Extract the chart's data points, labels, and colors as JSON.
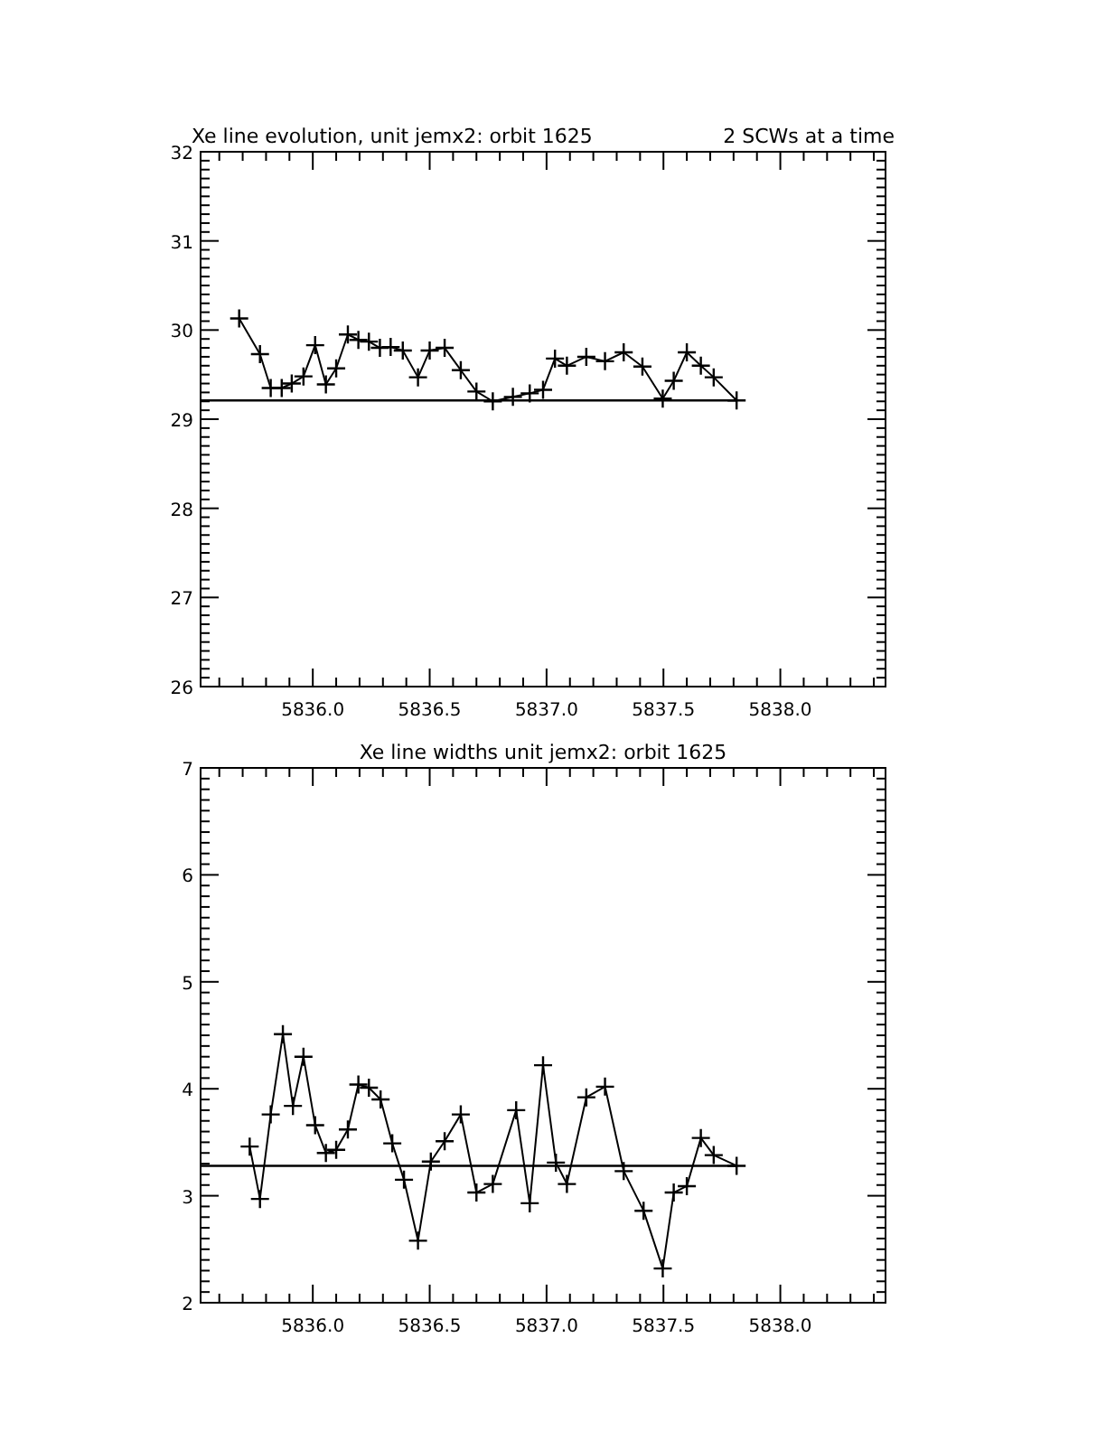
{
  "chart_data": [
    {
      "type": "line",
      "title": "Xe line evolution, unit jemx2: orbit 1625",
      "subtitle": "2 SCWs at a time",
      "marker": "cross",
      "line_style": "solid",
      "grid": false,
      "x": [
        5835.685,
        5835.774,
        5835.82,
        5835.867,
        5835.91,
        5835.96,
        5836.01,
        5836.056,
        5836.1,
        5836.15,
        5836.195,
        5836.24,
        5836.287,
        5836.333,
        5836.385,
        5836.45,
        5836.5,
        5836.564,
        5836.633,
        5836.7,
        5836.77,
        5836.856,
        5836.928,
        5836.985,
        5837.036,
        5837.087,
        5837.17,
        5837.25,
        5837.33,
        5837.41,
        5837.497,
        5837.544,
        5837.6,
        5837.66,
        5837.715,
        5837.813
      ],
      "series": [
        {
          "color": "#000000",
          "values": [
            30.13,
            29.73,
            29.35,
            29.35,
            29.4,
            29.48,
            29.83,
            29.39,
            29.57,
            29.95,
            29.89,
            29.87,
            29.8,
            29.81,
            29.77,
            29.47,
            29.77,
            29.8,
            29.55,
            29.31,
            29.2,
            29.25,
            29.29,
            29.33,
            29.68,
            29.6,
            29.7,
            29.65,
            29.75,
            29.59,
            29.23,
            29.43,
            29.75,
            29.6,
            29.47,
            29.21
          ]
        }
      ],
      "ref_lines": [
        {
          "axis": "y",
          "value": 29.21,
          "color": "#000000"
        }
      ],
      "xlim": [
        5835.52,
        5838.45
      ],
      "xticks": [
        {
          "value": 5835.6,
          "label": null
        },
        {
          "value": 5835.7,
          "label": null
        },
        {
          "value": 5835.8,
          "label": null
        },
        {
          "value": 5835.9,
          "label": null
        },
        {
          "value": 5836.0,
          "label": "5836.0"
        },
        {
          "value": 5836.1,
          "label": null
        },
        {
          "value": 5836.2,
          "label": null
        },
        {
          "value": 5836.3,
          "label": null
        },
        {
          "value": 5836.4,
          "label": null
        },
        {
          "value": 5836.5,
          "label": "5836.5"
        },
        {
          "value": 5836.6,
          "label": null
        },
        {
          "value": 5836.7,
          "label": null
        },
        {
          "value": 5836.8,
          "label": null
        },
        {
          "value": 5836.9,
          "label": null
        },
        {
          "value": 5837.0,
          "label": "5837.0"
        },
        {
          "value": 5837.1,
          "label": null
        },
        {
          "value": 5837.2,
          "label": null
        },
        {
          "value": 5837.3,
          "label": null
        },
        {
          "value": 5837.4,
          "label": null
        },
        {
          "value": 5837.5,
          "label": "5837.5"
        },
        {
          "value": 5837.6,
          "label": null
        },
        {
          "value": 5837.7,
          "label": null
        },
        {
          "value": 5837.8,
          "label": null
        },
        {
          "value": 5837.9,
          "label": null
        },
        {
          "value": 5838.0,
          "label": "5838.0"
        },
        {
          "value": 5838.1,
          "label": null
        },
        {
          "value": 5838.2,
          "label": null
        },
        {
          "value": 5838.3,
          "label": null
        },
        {
          "value": 5838.4,
          "label": null
        }
      ],
      "ylim": [
        26,
        32
      ],
      "yticks": [
        26,
        {
          "value": 26.1,
          "label": null
        },
        {
          "value": 26.2,
          "label": null
        },
        {
          "value": 26.3,
          "label": null
        },
        {
          "value": 26.4,
          "label": null
        },
        {
          "value": 26.5,
          "label": null
        },
        {
          "value": 26.6,
          "label": null
        },
        {
          "value": 26.7,
          "label": null
        },
        {
          "value": 26.8,
          "label": null
        },
        {
          "value": 26.9,
          "label": null
        },
        27,
        {
          "value": 27.1,
          "label": null
        },
        {
          "value": 27.2,
          "label": null
        },
        {
          "value": 27.3,
          "label": null
        },
        {
          "value": 27.4,
          "label": null
        },
        {
          "value": 27.5,
          "label": null
        },
        {
          "value": 27.6,
          "label": null
        },
        {
          "value": 27.7,
          "label": null
        },
        {
          "value": 27.8,
          "label": null
        },
        {
          "value": 27.9,
          "label": null
        },
        28,
        {
          "value": 28.1,
          "label": null
        },
        {
          "value": 28.2,
          "label": null
        },
        {
          "value": 28.3,
          "label": null
        },
        {
          "value": 28.4,
          "label": null
        },
        {
          "value": 28.5,
          "label": null
        },
        {
          "value": 28.6,
          "label": null
        },
        {
          "value": 28.7,
          "label": null
        },
        {
          "value": 28.8,
          "label": null
        },
        {
          "value": 28.9,
          "label": null
        },
        29,
        {
          "value": 29.1,
          "label": null
        },
        {
          "value": 29.2,
          "label": null
        },
        {
          "value": 29.3,
          "label": null
        },
        {
          "value": 29.4,
          "label": null
        },
        {
          "value": 29.5,
          "label": null
        },
        {
          "value": 29.6,
          "label": null
        },
        {
          "value": 29.7,
          "label": null
        },
        {
          "value": 29.8,
          "label": null
        },
        {
          "value": 29.9,
          "label": null
        },
        30,
        {
          "value": 30.1,
          "label": null
        },
        {
          "value": 30.2,
          "label": null
        },
        {
          "value": 30.3,
          "label": null
        },
        {
          "value": 30.4,
          "label": null
        },
        {
          "value": 30.5,
          "label": null
        },
        {
          "value": 30.6,
          "label": null
        },
        {
          "value": 30.7,
          "label": null
        },
        {
          "value": 30.8,
          "label": null
        },
        {
          "value": 30.9,
          "label": null
        },
        31,
        {
          "value": 31.1,
          "label": null
        },
        {
          "value": 31.2,
          "label": null
        },
        {
          "value": 31.3,
          "label": null
        },
        {
          "value": 31.4,
          "label": null
        },
        {
          "value": 31.5,
          "label": null
        },
        {
          "value": 31.6,
          "label": null
        },
        {
          "value": 31.7,
          "label": null
        },
        {
          "value": 31.8,
          "label": null
        },
        {
          "value": 31.9,
          "label": null
        },
        32
      ]
    },
    {
      "type": "line",
      "title": "Xe line widths unit jemx2: orbit 1625",
      "marker": "cross",
      "line_style": "solid",
      "grid": false,
      "x": [
        5835.73,
        5835.774,
        5835.82,
        5835.872,
        5835.915,
        5835.96,
        5836.01,
        5836.056,
        5836.1,
        5836.15,
        5836.195,
        5836.24,
        5836.29,
        5836.34,
        5836.39,
        5836.45,
        5836.505,
        5836.564,
        5836.633,
        5836.7,
        5836.77,
        5836.87,
        5836.928,
        5836.985,
        5837.04,
        5837.087,
        5837.17,
        5837.25,
        5837.33,
        5837.415,
        5837.497,
        5837.544,
        5837.6,
        5837.66,
        5837.715,
        5837.813
      ],
      "series": [
        {
          "color": "#000000",
          "values": [
            3.46,
            2.97,
            3.76,
            4.51,
            3.84,
            4.3,
            3.66,
            3.4,
            3.43,
            3.62,
            4.04,
            4.01,
            3.9,
            3.49,
            3.15,
            2.58,
            3.32,
            3.51,
            3.76,
            3.03,
            3.11,
            3.8,
            2.93,
            4.22,
            3.31,
            3.11,
            3.92,
            4.02,
            3.23,
            2.86,
            2.32,
            3.03,
            3.09,
            3.54,
            3.38,
            3.28
          ]
        }
      ],
      "ref_lines": [
        {
          "axis": "y",
          "value": 3.28,
          "color": "#000000"
        }
      ],
      "xlim": [
        5835.52,
        5838.45
      ],
      "xticks": [
        {
          "value": 5835.6,
          "label": null
        },
        {
          "value": 5835.7,
          "label": null
        },
        {
          "value": 5835.8,
          "label": null
        },
        {
          "value": 5835.9,
          "label": null
        },
        {
          "value": 5836.0,
          "label": "5836.0"
        },
        {
          "value": 5836.1,
          "label": null
        },
        {
          "value": 5836.2,
          "label": null
        },
        {
          "value": 5836.3,
          "label": null
        },
        {
          "value": 5836.4,
          "label": null
        },
        {
          "value": 5836.5,
          "label": "5836.5"
        },
        {
          "value": 5836.6,
          "label": null
        },
        {
          "value": 5836.7,
          "label": null
        },
        {
          "value": 5836.8,
          "label": null
        },
        {
          "value": 5836.9,
          "label": null
        },
        {
          "value": 5837.0,
          "label": "5837.0"
        },
        {
          "value": 5837.1,
          "label": null
        },
        {
          "value": 5837.2,
          "label": null
        },
        {
          "value": 5837.3,
          "label": null
        },
        {
          "value": 5837.4,
          "label": null
        },
        {
          "value": 5837.5,
          "label": "5837.5"
        },
        {
          "value": 5837.6,
          "label": null
        },
        {
          "value": 5837.7,
          "label": null
        },
        {
          "value": 5837.8,
          "label": null
        },
        {
          "value": 5837.9,
          "label": null
        },
        {
          "value": 5838.0,
          "label": "5838.0"
        },
        {
          "value": 5838.1,
          "label": null
        },
        {
          "value": 5838.2,
          "label": null
        },
        {
          "value": 5838.3,
          "label": null
        },
        {
          "value": 5838.4,
          "label": null
        }
      ],
      "ylim": [
        2,
        7
      ],
      "yticks": [
        2,
        {
          "value": 2.1,
          "label": null
        },
        {
          "value": 2.2,
          "label": null
        },
        {
          "value": 2.3,
          "label": null
        },
        {
          "value": 2.4,
          "label": null
        },
        {
          "value": 2.5,
          "label": null
        },
        {
          "value": 2.6,
          "label": null
        },
        {
          "value": 2.7,
          "label": null
        },
        {
          "value": 2.8,
          "label": null
        },
        {
          "value": 2.9,
          "label": null
        },
        3,
        {
          "value": 3.1,
          "label": null
        },
        {
          "value": 3.2,
          "label": null
        },
        {
          "value": 3.3,
          "label": null
        },
        {
          "value": 3.4,
          "label": null
        },
        {
          "value": 3.5,
          "label": null
        },
        {
          "value": 3.6,
          "label": null
        },
        {
          "value": 3.7,
          "label": null
        },
        {
          "value": 3.8,
          "label": null
        },
        {
          "value": 3.9,
          "label": null
        },
        4,
        {
          "value": 4.1,
          "label": null
        },
        {
          "value": 4.2,
          "label": null
        },
        {
          "value": 4.3,
          "label": null
        },
        {
          "value": 4.4,
          "label": null
        },
        {
          "value": 4.5,
          "label": null
        },
        {
          "value": 4.6,
          "label": null
        },
        {
          "value": 4.7,
          "label": null
        },
        {
          "value": 4.8,
          "label": null
        },
        {
          "value": 4.9,
          "label": null
        },
        5,
        {
          "value": 5.1,
          "label": null
        },
        {
          "value": 5.2,
          "label": null
        },
        {
          "value": 5.3,
          "label": null
        },
        {
          "value": 5.4,
          "label": null
        },
        {
          "value": 5.5,
          "label": null
        },
        {
          "value": 5.6,
          "label": null
        },
        {
          "value": 5.7,
          "label": null
        },
        {
          "value": 5.8,
          "label": null
        },
        {
          "value": 5.9,
          "label": null
        },
        6,
        {
          "value": 6.1,
          "label": null
        },
        {
          "value": 6.2,
          "label": null
        },
        {
          "value": 6.3,
          "label": null
        },
        {
          "value": 6.4,
          "label": null
        },
        {
          "value": 6.5,
          "label": null
        },
        {
          "value": 6.6,
          "label": null
        },
        {
          "value": 6.7,
          "label": null
        },
        {
          "value": 6.8,
          "label": null
        },
        {
          "value": 6.9,
          "label": null
        },
        7
      ]
    }
  ]
}
